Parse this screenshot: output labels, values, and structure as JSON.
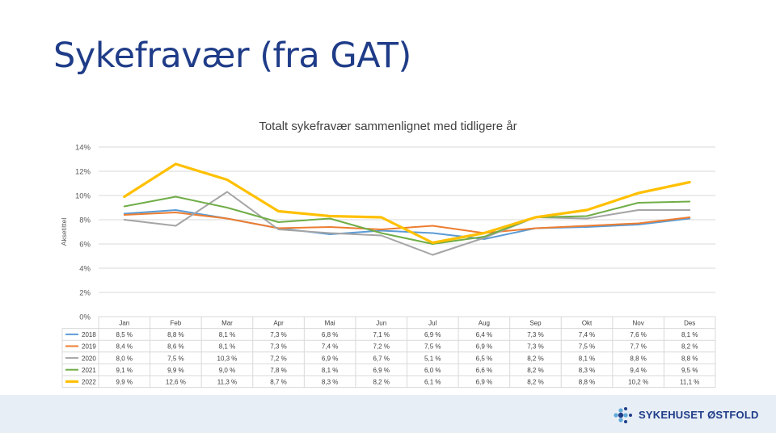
{
  "slide": {
    "title": "Sykefravær (fra GAT)"
  },
  "logo": {
    "text": "SYKEHUSET ØSTFOLD"
  },
  "colors": {
    "title": "#1f3c88",
    "footer_band": "#e8eef6",
    "logo_blue": "#1f3c88",
    "logo_light": "#5fa9d8"
  },
  "chart_data": {
    "type": "line",
    "title": "Totalt sykefravær sammenlignet med tidligere år",
    "ylabel": "Aksetittel",
    "xlabel": "",
    "ylim": [
      0,
      14
    ],
    "yticks": [
      "0%",
      "2%",
      "4%",
      "6%",
      "8%",
      "10%",
      "12%",
      "14%"
    ],
    "grid": true,
    "legend": "data-table",
    "categories": [
      "Jan",
      "Feb",
      "Mar",
      "Apr",
      "Mai",
      "Jun",
      "Jul",
      "Aug",
      "Sep",
      "Okt",
      "Nov",
      "Des"
    ],
    "series": [
      {
        "name": "2018",
        "color": "#5b9bd5",
        "values": [
          8.5,
          8.8,
          8.1,
          7.3,
          6.8,
          7.1,
          6.9,
          6.4,
          7.3,
          7.4,
          7.6,
          8.1
        ],
        "labels": [
          "8,5 %",
          "8,8 %",
          "8,1 %",
          "7,3 %",
          "6,8 %",
          "7,1 %",
          "6,9 %",
          "6,4 %",
          "7,3 %",
          "7,4 %",
          "7,6 %",
          "8,1 %"
        ]
      },
      {
        "name": "2019",
        "color": "#ed7d31",
        "values": [
          8.4,
          8.6,
          8.1,
          7.3,
          7.4,
          7.2,
          7.5,
          6.9,
          7.3,
          7.5,
          7.7,
          8.2
        ],
        "labels": [
          "8,4 %",
          "8,6 %",
          "8,1 %",
          "7,3 %",
          "7,4 %",
          "7,2 %",
          "7,5 %",
          "6,9 %",
          "7,3 %",
          "7,5 %",
          "7,7 %",
          "8,2 %"
        ]
      },
      {
        "name": "2020",
        "color": "#a5a5a5",
        "values": [
          8.0,
          7.5,
          10.3,
          7.2,
          6.9,
          6.7,
          5.1,
          6.5,
          8.2,
          8.1,
          8.8,
          8.8
        ],
        "labels": [
          "8,0 %",
          "7,5 %",
          "10,3 %",
          "7,2 %",
          "6,9 %",
          "6,7 %",
          "5,1 %",
          "6,5 %",
          "8,2 %",
          "8,1 %",
          "8,8 %",
          "8,8 %"
        ]
      },
      {
        "name": "2021",
        "color": "#70ad47",
        "values": [
          9.1,
          9.9,
          9.0,
          7.8,
          8.1,
          6.9,
          6.0,
          6.6,
          8.2,
          8.3,
          9.4,
          9.5
        ],
        "labels": [
          "9,1 %",
          "9,9 %",
          "9,0 %",
          "7,8 %",
          "8,1 %",
          "6,9 %",
          "6,0 %",
          "6,6 %",
          "8,2 %",
          "8,3 %",
          "9,4 %",
          "9,5 %"
        ]
      },
      {
        "name": "2022",
        "color": "#ffc000",
        "values": [
          9.9,
          12.6,
          11.3,
          8.7,
          8.3,
          8.2,
          6.1,
          6.9,
          8.2,
          8.8,
          10.2,
          11.1
        ],
        "labels": [
          "9,9 %",
          "12,6 %",
          "11,3 %",
          "8,7 %",
          "8,3 %",
          "8,2 %",
          "6,1 %",
          "6,9 %",
          "8,2 %",
          "8,8 %",
          "10,2 %",
          "11,1 %"
        ]
      }
    ]
  }
}
